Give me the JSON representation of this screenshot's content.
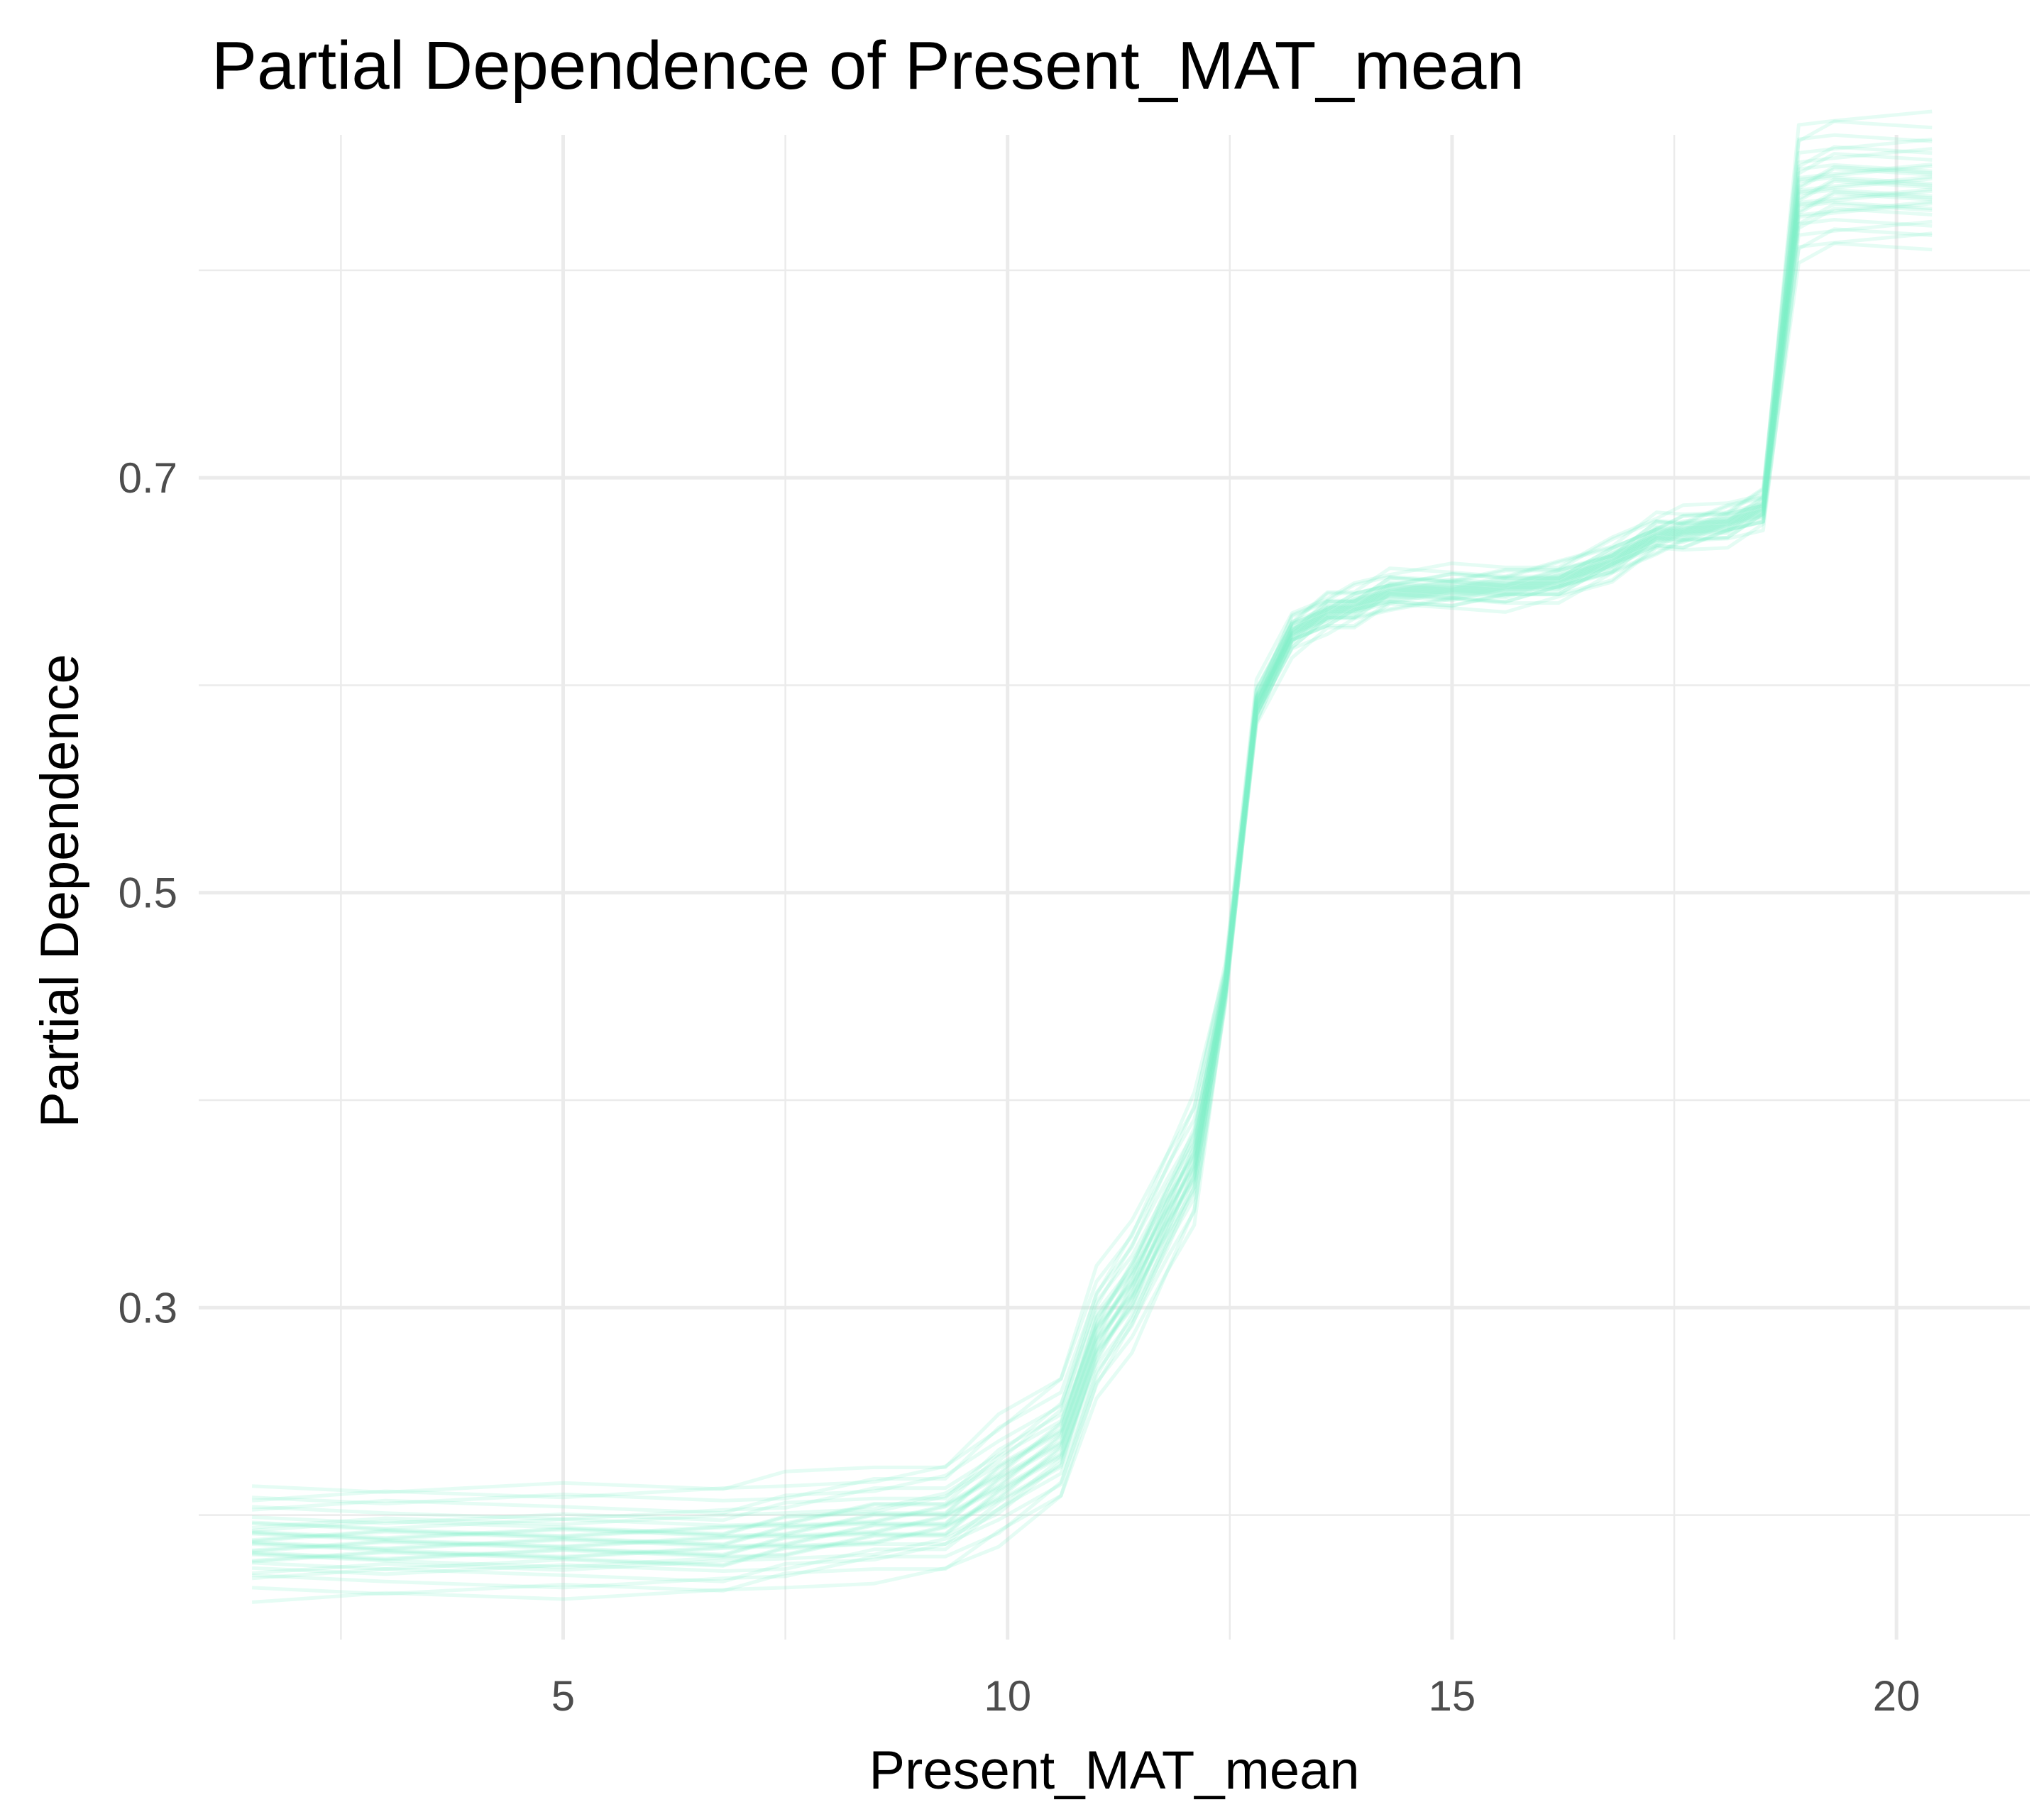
{
  "chart_data": {
    "type": "line",
    "title": "Partial Dependence of Present_MAT_mean",
    "xlabel": "Present_MAT_mean",
    "ylabel": "Partial Dependence",
    "xlim": [
      0.9,
      21.5
    ],
    "ylim": [
      0.14,
      0.8653
    ],
    "x_ticks": [
      5,
      10,
      15,
      20
    ],
    "x_tick_labels": [
      "5",
      "10",
      "15",
      "20"
    ],
    "y_ticks": [
      0.3,
      0.5,
      0.7
    ],
    "y_tick_labels": [
      "0.3",
      "0.5",
      "0.7"
    ],
    "x_minor_breaks": [
      2.5,
      7.5,
      12.5,
      17.5
    ],
    "y_minor_breaks": [
      0.2,
      0.4,
      0.6,
      0.8
    ],
    "grid": true,
    "legend": "none",
    "line_color": "#7FF0C8",
    "line_opacity": 0.2,
    "center_curve": {
      "x": [
        1.5,
        3,
        5,
        6.8,
        7.5,
        8.5,
        9.3,
        9.9,
        10.6,
        11,
        11.4,
        11.8,
        12.1,
        12.45,
        12.8,
        13.2,
        13.6,
        13.9,
        14.3,
        15,
        15.6,
        16.2,
        16.8,
        17.3,
        17.6,
        18.1,
        18.5,
        18.9,
        19.3,
        20.4
      ],
      "y": [
        0.186,
        0.186,
        0.186,
        0.186,
        0.19,
        0.195,
        0.198,
        0.215,
        0.235,
        0.285,
        0.31,
        0.345,
        0.37,
        0.455,
        0.59,
        0.625,
        0.635,
        0.638,
        0.645,
        0.646,
        0.647,
        0.65,
        0.66,
        0.672,
        0.674,
        0.678,
        0.685,
        0.835,
        0.84,
        0.84
      ]
    },
    "series_offsets": [
      -0.025,
      -0.021,
      -0.018,
      -0.015,
      -0.013,
      -0.011,
      -0.009,
      -0.008,
      -0.007,
      -0.006,
      -0.005,
      -0.004,
      -0.003,
      -0.002,
      -0.001,
      0.0,
      0.001,
      0.002,
      0.003,
      0.004,
      0.005,
      0.006,
      0.007,
      0.008,
      0.009,
      0.011,
      0.013,
      0.015,
      0.018,
      0.021,
      0.024,
      0.028
    ],
    "series_count": 32
  }
}
